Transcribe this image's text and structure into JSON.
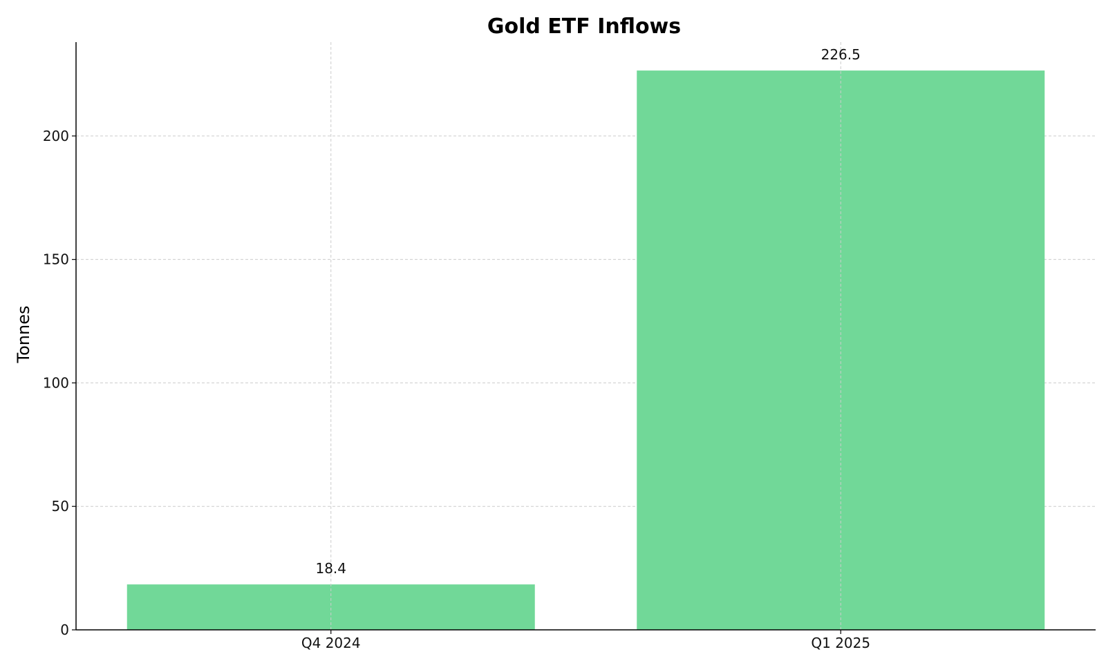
{
  "chart_data": {
    "type": "bar",
    "title": "Gold ETF Inflows",
    "xlabel": "",
    "ylabel": "Tonnes",
    "categories": [
      "Q4 2024",
      "Q1 2025"
    ],
    "values": [
      18.4,
      226.5
    ],
    "value_labels": [
      "18.4",
      "226.5"
    ],
    "ylim": [
      0,
      238
    ],
    "yticks": [
      0,
      50,
      100,
      150,
      200
    ],
    "ytick_labels": [
      "0",
      "50",
      "100",
      "150",
      "200"
    ],
    "grid": true,
    "bar_color": "#71d898"
  }
}
